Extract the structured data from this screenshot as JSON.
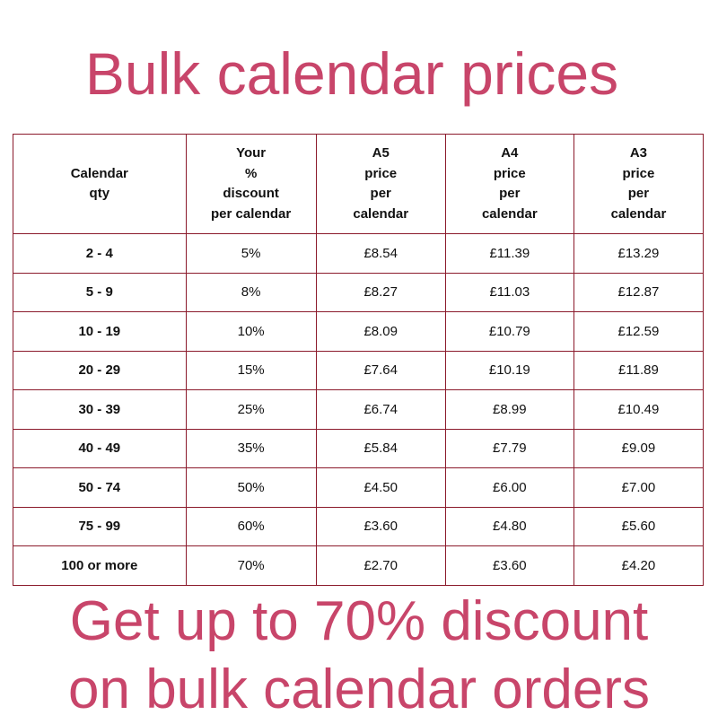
{
  "title": "Bulk calendar prices",
  "table": {
    "headers": [
      [
        "Calendar",
        "qty"
      ],
      [
        "Your",
        "%",
        "discount",
        "per calendar"
      ],
      [
        "A5",
        "price",
        "per",
        "calendar"
      ],
      [
        "A4",
        "price",
        "per",
        "calendar"
      ],
      [
        "A3",
        "price",
        "per",
        "calendar"
      ]
    ],
    "rows": [
      [
        "2 - 4",
        "5%",
        "£8.54",
        "£11.39",
        "£13.29"
      ],
      [
        "5 - 9",
        "8%",
        "£8.27",
        "£11.03",
        "£12.87"
      ],
      [
        "10 - 19",
        "10%",
        "£8.09",
        "£10.79",
        "£12.59"
      ],
      [
        "20 - 29",
        "15%",
        "£7.64",
        "£10.19",
        "£11.89"
      ],
      [
        "30 - 39",
        "25%",
        "£6.74",
        "£8.99",
        "£10.49"
      ],
      [
        "40 - 49",
        "35%",
        "£5.84",
        "£7.79",
        "£9.09"
      ],
      [
        "50 - 74",
        "50%",
        "£4.50",
        "£6.00",
        "£7.00"
      ],
      [
        "75 - 99",
        "60%",
        "£3.60",
        "£4.80",
        "£5.60"
      ],
      [
        "100 or more",
        "70%",
        "£2.70",
        "£3.60",
        "£4.20"
      ]
    ]
  },
  "footer": {
    "line1": "Get up to 70% discount",
    "line2": "on bulk calendar orders"
  },
  "colors": {
    "accent": "#c8456a",
    "border": "#8b1a2b"
  }
}
